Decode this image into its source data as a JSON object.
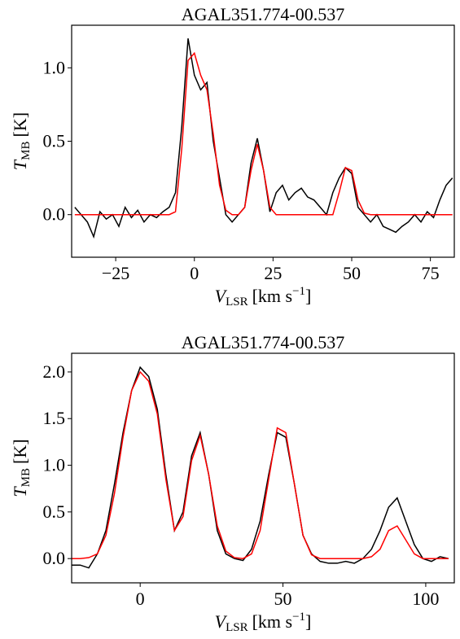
{
  "chart_data": [
    {
      "type": "line",
      "title": "AGAL351.774-00.537",
      "xlabel": {
        "symbol": "V",
        "sub": "LSR",
        "unit": "[km s",
        "sup": "−1",
        "close": "]"
      },
      "ylabel": {
        "symbol": "T",
        "sub": "MB",
        "unit": "[K]"
      },
      "x": [
        -38,
        -36,
        -34,
        -32,
        -30,
        -28,
        -26,
        -24,
        -22,
        -20,
        -18,
        -16,
        -14,
        -12,
        -10,
        -8,
        -6,
        -4,
        -2,
        0,
        2,
        4,
        6,
        8,
        10,
        12,
        14,
        16,
        18,
        20,
        22,
        24,
        26,
        28,
        30,
        32,
        34,
        36,
        38,
        40,
        42,
        44,
        46,
        48,
        50,
        52,
        54,
        56,
        58,
        60,
        62,
        64,
        66,
        68,
        70,
        72,
        74,
        76,
        78,
        80,
        82
      ],
      "series": [
        {
          "color": "#000000",
          "values": [
            0.05,
            0.0,
            -0.05,
            -0.15,
            0.02,
            -0.03,
            0.0,
            -0.08,
            0.05,
            -0.02,
            0.03,
            -0.05,
            0.0,
            -0.02,
            0.02,
            0.05,
            0.15,
            0.6,
            1.2,
            0.95,
            0.85,
            0.9,
            0.5,
            0.25,
            0.0,
            -0.05,
            0.0,
            0.05,
            0.35,
            0.52,
            0.3,
            0.02,
            0.15,
            0.2,
            0.1,
            0.15,
            0.18,
            0.12,
            0.1,
            0.05,
            0.0,
            0.15,
            0.25,
            0.32,
            0.28,
            0.05,
            0.0,
            -0.05,
            0.0,
            -0.08,
            -0.1,
            -0.12,
            -0.08,
            -0.05,
            0.0,
            -0.05,
            0.02,
            -0.02,
            0.1,
            0.2,
            0.25
          ]
        },
        {
          "color": "#ff0000",
          "values": [
            0,
            0,
            0,
            0,
            0,
            0,
            0,
            0,
            0,
            0,
            0,
            0,
            0,
            0,
            0,
            0,
            0.02,
            0.45,
            1.05,
            1.1,
            0.95,
            0.85,
            0.55,
            0.2,
            0.03,
            0,
            0,
            0.05,
            0.3,
            0.48,
            0.3,
            0.05,
            0,
            0,
            0,
            0,
            0,
            0,
            0,
            0,
            0,
            0,
            0.15,
            0.32,
            0.3,
            0.1,
            0.01,
            0,
            0,
            0,
            0,
            0,
            0,
            0,
            0,
            0,
            0,
            0,
            0,
            0,
            0
          ]
        }
      ],
      "xlim": [
        -39,
        82.6
      ],
      "ylim": [
        -0.29,
        1.29
      ],
      "xticks": [
        {
          "value": -25,
          "label": "−25"
        },
        0,
        25,
        50,
        75
      ],
      "yticks": [
        {
          "value": 0,
          "label": "0.0"
        },
        {
          "value": 0.5,
          "label": "0.5"
        },
        {
          "value": 1,
          "label": "1.0"
        }
      ]
    },
    {
      "type": "line",
      "title": "AGAL351.774-00.537",
      "xlabel": {
        "symbol": "V",
        "sub": "LSR",
        "unit": "[km s",
        "sup": "−1",
        "close": "]"
      },
      "ylabel": {
        "symbol": "T",
        "sub": "MB",
        "unit": "[K]"
      },
      "x": [
        -24,
        -21,
        -18,
        -15,
        -12,
        -9,
        -6,
        -3,
        0,
        3,
        6,
        9,
        12,
        15,
        18,
        21,
        24,
        27,
        30,
        33,
        36,
        39,
        42,
        45,
        48,
        51,
        54,
        57,
        60,
        63,
        66,
        69,
        72,
        75,
        78,
        81,
        84,
        87,
        90,
        93,
        96,
        99,
        102,
        105,
        108
      ],
      "series": [
        {
          "color": "#000000",
          "values": [
            -0.07,
            -0.07,
            -0.1,
            0.05,
            0.3,
            0.8,
            1.35,
            1.8,
            2.05,
            1.95,
            1.6,
            0.9,
            0.3,
            0.5,
            1.1,
            1.35,
            0.9,
            0.3,
            0.05,
            0.0,
            -0.02,
            0.1,
            0.4,
            0.9,
            1.35,
            1.3,
            0.8,
            0.25,
            0.05,
            -0.03,
            -0.05,
            -0.05,
            -0.03,
            -0.05,
            0.0,
            0.1,
            0.3,
            0.55,
            0.65,
            0.4,
            0.15,
            0.0,
            -0.03,
            0.02,
            0.0
          ]
        },
        {
          "color": "#ff0000",
          "values": [
            0,
            0,
            0.01,
            0.05,
            0.25,
            0.7,
            1.3,
            1.8,
            2.0,
            1.9,
            1.55,
            0.85,
            0.3,
            0.45,
            1.05,
            1.32,
            0.9,
            0.35,
            0.08,
            0.01,
            0,
            0.05,
            0.3,
            0.85,
            1.4,
            1.35,
            0.8,
            0.25,
            0.04,
            0,
            0,
            0,
            0,
            0,
            0,
            0.02,
            0.1,
            0.3,
            0.35,
            0.2,
            0.05,
            0,
            0,
            0,
            0
          ]
        }
      ],
      "xlim": [
        -24,
        110
      ],
      "ylim": [
        -0.26,
        2.2
      ],
      "xticks": [
        0,
        50,
        100
      ],
      "yticks": [
        {
          "value": 0,
          "label": "0.0"
        },
        {
          "value": 0.5,
          "label": "0.5"
        },
        {
          "value": 1,
          "label": "1.0"
        },
        {
          "value": 1.5,
          "label": "1.5"
        },
        {
          "value": 2,
          "label": "2.0"
        }
      ]
    }
  ]
}
